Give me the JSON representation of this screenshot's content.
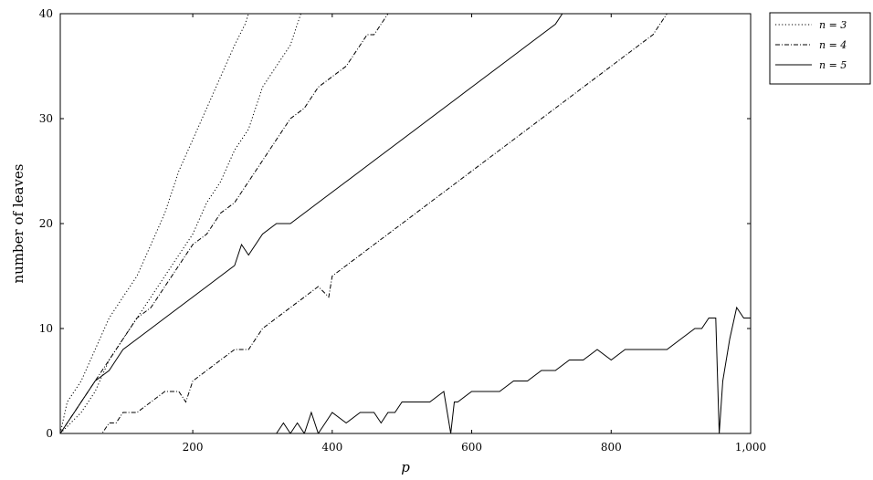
{
  "chart_data": {
    "type": "line",
    "title": "",
    "xlabel": "p",
    "ylabel": "number of leaves",
    "xlim": [
      10,
      1000
    ],
    "ylim": [
      0,
      40
    ],
    "xticks": [
      200,
      400,
      600,
      800,
      1000
    ],
    "xtick_labels": [
      "200",
      "400",
      "600",
      "800",
      "1,000"
    ],
    "yticks": [
      0,
      10,
      20,
      30,
      40
    ],
    "ytick_labels": [
      "0",
      "10",
      "20",
      "30",
      "40"
    ],
    "grid": false,
    "legend_position": "outside-top-right",
    "series": [
      {
        "name": "n = 3",
        "style": "dotted",
        "x": [
          10,
          20,
          40,
          60,
          80,
          100,
          120,
          140,
          160,
          180,
          200,
          220,
          240,
          260,
          275,
          280
        ],
        "y": [
          0,
          3,
          5,
          8,
          11,
          13,
          15,
          18,
          21,
          25,
          28,
          31,
          34,
          37,
          39,
          40
        ]
      },
      {
        "name": "n = 3",
        "style": "dotted",
        "x": [
          10,
          40,
          60,
          80,
          100,
          120,
          140,
          160,
          180,
          200,
          220,
          240,
          260,
          280,
          300,
          320,
          340,
          350,
          355,
          360
        ],
        "y": [
          0,
          2,
          4,
          7,
          9,
          11,
          13,
          15,
          17,
          19,
          22,
          24,
          27,
          29,
          33,
          35,
          37,
          39,
          40,
          40
        ]
      },
      {
        "name": "n = 4",
        "style": "dashdot",
        "x": [
          10,
          20,
          40,
          60,
          80,
          100,
          120,
          140,
          160,
          180,
          200,
          220,
          240,
          260,
          280,
          300,
          320,
          340,
          360,
          380,
          400,
          420,
          440,
          450,
          460,
          470,
          480,
          490,
          500
        ],
        "y": [
          0,
          1,
          3,
          5,
          7,
          9,
          11,
          12,
          14,
          16,
          18,
          19,
          21,
          22,
          24,
          26,
          28,
          30,
          31,
          33,
          34,
          35,
          37,
          38,
          38,
          39,
          40,
          40,
          40
        ]
      },
      {
        "name": "n = 4",
        "style": "dashdot",
        "x": [
          10,
          50,
          70,
          80,
          90,
          100,
          120,
          140,
          160,
          180,
          190,
          200,
          220,
          240,
          260,
          280,
          300,
          320,
          340,
          360,
          380,
          395,
          400,
          420,
          440,
          460,
          480,
          500,
          520,
          540,
          560,
          580,
          600,
          620,
          640,
          660,
          680,
          700,
          720,
          740,
          760,
          780,
          800,
          820,
          840,
          860,
          870,
          880
        ],
        "y": [
          0,
          0,
          0,
          1,
          1,
          2,
          2,
          3,
          4,
          4,
          3,
          5,
          6,
          7,
          8,
          8,
          10,
          11,
          12,
          13,
          14,
          13,
          15,
          16,
          17,
          18,
          19,
          20,
          21,
          22,
          23,
          24,
          25,
          26,
          27,
          28,
          29,
          30,
          31,
          32,
          33,
          34,
          35,
          36,
          37,
          38,
          39,
          40
        ]
      },
      {
        "name": "n = 5",
        "style": "solid",
        "x": [
          10,
          20,
          30,
          40,
          60,
          80,
          100,
          120,
          140,
          160,
          180,
          200,
          220,
          240,
          260,
          270,
          280,
          300,
          320,
          340,
          360,
          380,
          400,
          420,
          440,
          460,
          480,
          500,
          520,
          540,
          560,
          580,
          600,
          620,
          640,
          660,
          680,
          700,
          720,
          730,
          740
        ],
        "y": [
          0,
          1,
          2,
          3,
          5,
          6,
          8,
          9,
          10,
          11,
          12,
          13,
          14,
          15,
          16,
          18,
          17,
          19,
          20,
          20,
          21,
          22,
          23,
          24,
          25,
          26,
          27,
          28,
          29,
          30,
          31,
          32,
          33,
          34,
          35,
          36,
          37,
          38,
          39,
          40,
          40
        ]
      },
      {
        "name": "n = 5",
        "style": "solid",
        "x": [
          10,
          300,
          320,
          330,
          340,
          350,
          360,
          370,
          380,
          390,
          400,
          420,
          440,
          460,
          470,
          480,
          490,
          500,
          520,
          540,
          560,
          570,
          575,
          580,
          600,
          620,
          640,
          660,
          670,
          680,
          700,
          720,
          740,
          760,
          780,
          800,
          820,
          840,
          860,
          880,
          900,
          920,
          930,
          940,
          950,
          955,
          960,
          970,
          980,
          990,
          1000
        ],
        "y": [
          0,
          0,
          0,
          1,
          0,
          1,
          0,
          2,
          0,
          1,
          2,
          1,
          2,
          2,
          1,
          2,
          2,
          3,
          3,
          3,
          4,
          0,
          3,
          3,
          4,
          4,
          4,
          5,
          5,
          5,
          6,
          6,
          7,
          7,
          8,
          7,
          8,
          8,
          8,
          8,
          9,
          10,
          10,
          11,
          11,
          0,
          5,
          9,
          12,
          11,
          11
        ]
      }
    ]
  }
}
